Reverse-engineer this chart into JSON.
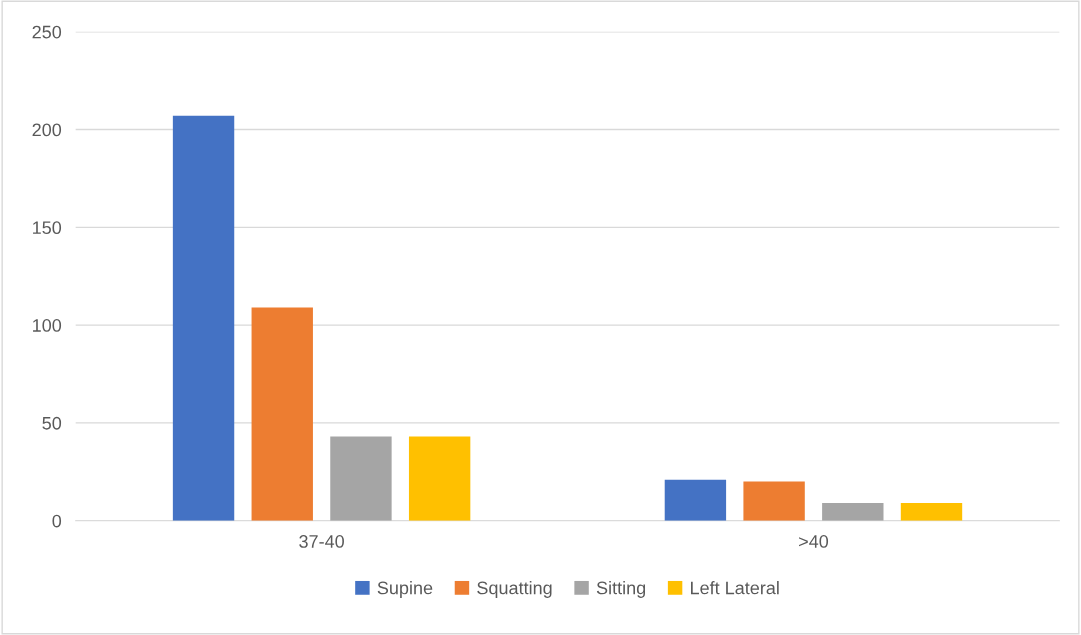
{
  "chart_data": {
    "type": "bar",
    "categories": [
      "37-40",
      ">40"
    ],
    "series": [
      {
        "name": "Supine",
        "color": "#4472c4",
        "values": [
          207,
          21
        ]
      },
      {
        "name": "Squatting",
        "color": "#ed7d31",
        "values": [
          109,
          20
        ]
      },
      {
        "name": "Sitting",
        "color": "#a5a5a5",
        "values": [
          43,
          9
        ]
      },
      {
        "name": "Left Lateral",
        "color": "#ffc000",
        "values": [
          43,
          9
        ]
      }
    ],
    "ylim": [
      0,
      250
    ],
    "yticks": [
      0,
      50,
      100,
      150,
      200,
      250
    ],
    "grid": "y",
    "legend": "bottom"
  }
}
